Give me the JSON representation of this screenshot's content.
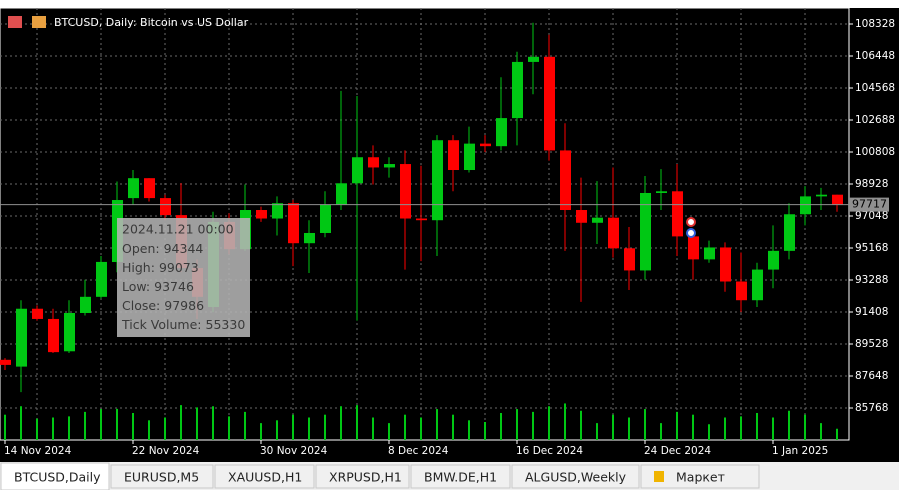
{
  "chart_data": {
    "type": "candlestick",
    "title": "BTCUSD, Daily:  Bitcoin vs US Dollar",
    "categories": [
      "14 Nov 2024",
      null,
      null,
      null,
      null,
      null,
      null,
      null,
      "22 Nov 2024",
      null,
      null,
      null,
      null,
      null,
      null,
      null,
      "30 Nov 2024",
      null,
      null,
      null,
      null,
      null,
      null,
      null,
      "8 Dec 2024",
      null,
      null,
      null,
      null,
      null,
      null,
      null,
      "16 Dec 2024",
      null,
      null,
      null,
      null,
      null,
      null,
      null,
      "24 Dec 2024",
      null,
      null,
      null,
      null,
      null,
      null,
      null,
      "1 Jan 2025",
      null,
      null,
      null,
      null
    ],
    "open": [
      88600,
      88200,
      91600,
      91000,
      89100,
      91350,
      92300,
      94344,
      98100,
      99270,
      98100,
      97100,
      93990,
      91700,
      96700,
      95100,
      97400,
      96900,
      97800,
      95450,
      96050,
      97700,
      98970,
      100500,
      99900,
      100100,
      96900,
      96800,
      101500,
      99750,
      101300,
      101150,
      102800,
      106100,
      106400,
      100900,
      97400,
      96650,
      96950,
      95150,
      93850,
      98400,
      98500,
      95850,
      94500,
      95200,
      93200,
      92100,
      93900,
      95000,
      97150,
      98200,
      98300
    ],
    "high": [
      88700,
      92100,
      91800,
      91600,
      92100,
      93300,
      94700,
      99073,
      99750,
      99270,
      98300,
      98980,
      94500,
      97300,
      97200,
      98900,
      97600,
      98200,
      98000,
      96800,
      98500,
      104400,
      104100,
      101200,
      100500,
      100900,
      100000,
      101800,
      101800,
      102300,
      101800,
      105200,
      106700,
      108400,
      107700,
      102500,
      99300,
      99100,
      99900,
      96400,
      99400,
      99800,
      100100,
      96300,
      95600,
      95500,
      94900,
      94300,
      96500,
      97800,
      98800,
      98700,
      98300
    ],
    "low": [
      88000,
      86700,
      90900,
      89000,
      89000,
      91200,
      92200,
      93746,
      97700,
      97900,
      96800,
      93750,
      91000,
      91400,
      94800,
      95000,
      96700,
      95900,
      94100,
      93700,
      95800,
      97400,
      90900,
      98900,
      99300,
      93900,
      94400,
      94700,
      98500,
      99600,
      100800,
      100900,
      101200,
      104200,
      100300,
      95000,
      92000,
      95400,
      94600,
      92700,
      93300,
      97400,
      94700,
      93300,
      94300,
      92600,
      91400,
      91700,
      92800,
      94500,
      96500,
      97400,
      97300
    ],
    "close": [
      88300,
      91600,
      91000,
      89050,
      91350,
      92300,
      94350,
      97986,
      99270,
      98100,
      97100,
      93990,
      92300,
      96700,
      95100,
      97400,
      96900,
      97800,
      95450,
      96050,
      97700,
      98970,
      100500,
      99900,
      100100,
      96900,
      96800,
      101500,
      99750,
      101300,
      101150,
      102800,
      106100,
      106400,
      100900,
      97400,
      96650,
      96950,
      95150,
      93850,
      98400,
      98500,
      95850,
      94500,
      95200,
      93200,
      92100,
      93900,
      95000,
      97150,
      98200,
      98300,
      97717
    ],
    "volume": [
      45000,
      60000,
      38000,
      40000,
      42000,
      50000,
      55000,
      55330,
      48000,
      35000,
      40000,
      62000,
      58000,
      60000,
      42000,
      50000,
      30000,
      35000,
      45000,
      40000,
      45000,
      60000,
      62000,
      40000,
      30000,
      45000,
      40000,
      55000,
      45000,
      35000,
      32000,
      48000,
      55000,
      50000,
      60000,
      65000,
      52000,
      30000,
      45000,
      40000,
      55000,
      30000,
      50000,
      45000,
      28000,
      40000,
      42000,
      48000,
      40000,
      52000,
      45000,
      30000,
      20000
    ],
    "up_color": "#00c814",
    "down_color": "#ff0000",
    "volume_color": "#00c814",
    "ylim": [
      83888,
      109268
    ],
    "yticks": [
      85768,
      87648,
      89528,
      91408,
      93288,
      95168,
      97048,
      98928,
      100808,
      102688,
      104568,
      106448,
      108328
    ],
    "vlim": [
      0,
      80000
    ],
    "grid": true,
    "tooltip": {
      "time": "2024.11.21 00:00",
      "index": 7,
      "labels": [
        "Open:",
        "High:",
        "Low:",
        "Close:",
        "Tick Volume:"
      ]
    }
  },
  "tabs": [
    "BTCUSD,Daily",
    "EURUSD,M5",
    "XAUUSD,H1",
    "XRPUSD,H1",
    "BMW.DE,H1",
    "ALGUSD,Weekly",
    "Маркет"
  ]
}
